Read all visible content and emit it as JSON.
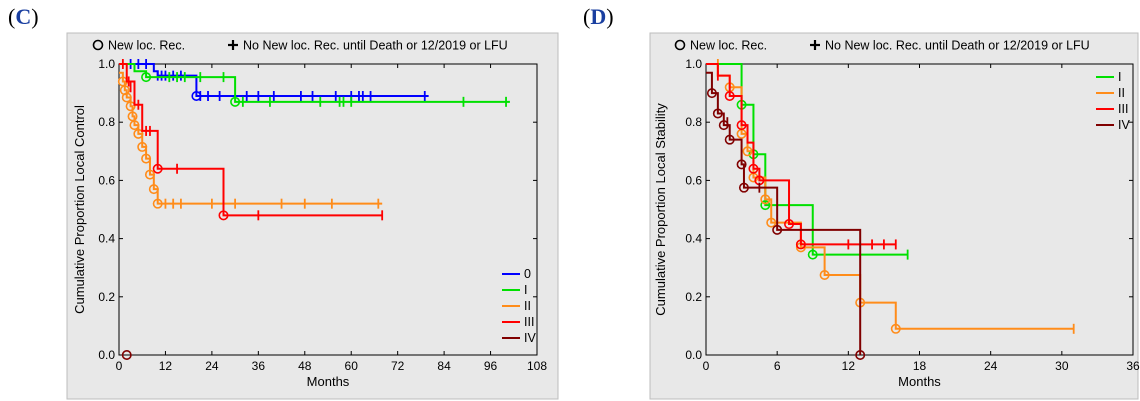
{
  "panels": [
    {
      "label_open": "(",
      "label_letter": "C",
      "label_close": ")",
      "top_legend": {
        "event": "New loc. Rec.",
        "censor": "No New loc. Rec. until Death or 12/2019 or LFU"
      },
      "chart_data": {
        "type": "line",
        "subtype": "kaplan-meier-step",
        "xlabel": "Months",
        "ylabel": "Cumulative Proportion Local Control",
        "xlim": [
          0,
          108
        ],
        "ylim": [
          0,
          1
        ],
        "xticks": [
          0,
          12,
          24,
          36,
          48,
          60,
          72,
          84,
          96,
          108
        ],
        "yticks": [
          "0.0",
          "0.2",
          "0.4",
          "0.6",
          "0.8",
          "1.0"
        ],
        "legend_position": "bottom-right",
        "series": [
          {
            "name": "0",
            "color": "#0000ff",
            "steps": [
              [
                0,
                1.0
              ],
              [
                9,
                0.975
              ],
              [
                10,
                0.96
              ],
              [
                20,
                0.89
              ],
              [
                80,
                0.89
              ]
            ],
            "events": [
              [
                20,
                0.89
              ]
            ],
            "censors": [
              [
                3,
                1.0
              ],
              [
                5,
                1.0
              ],
              [
                7,
                1.0
              ],
              [
                10,
                0.96
              ],
              [
                11,
                0.96
              ],
              [
                12,
                0.96
              ],
              [
                14,
                0.96
              ],
              [
                16,
                0.96
              ],
              [
                21,
                0.89
              ],
              [
                23,
                0.89
              ],
              [
                26,
                0.89
              ],
              [
                33,
                0.89
              ],
              [
                36,
                0.89
              ],
              [
                40,
                0.89
              ],
              [
                47,
                0.89
              ],
              [
                50,
                0.89
              ],
              [
                56,
                0.89
              ],
              [
                60,
                0.89
              ],
              [
                62,
                0.89
              ],
              [
                63,
                0.89
              ],
              [
                65,
                0.89
              ],
              [
                79,
                0.89
              ]
            ]
          },
          {
            "name": "I",
            "color": "#00e000",
            "steps": [
              [
                0,
                1.0
              ],
              [
                4,
                0.975
              ],
              [
                7,
                0.955
              ],
              [
                30,
                0.87
              ],
              [
                101,
                0.87
              ]
            ],
            "events": [
              [
                7,
                0.955
              ],
              [
                30,
                0.87
              ]
            ],
            "censors": [
              [
                13,
                0.955
              ],
              [
                15,
                0.955
              ],
              [
                17,
                0.955
              ],
              [
                21,
                0.955
              ],
              [
                27,
                0.955
              ],
              [
                32,
                0.87
              ],
              [
                39,
                0.87
              ],
              [
                52,
                0.87
              ],
              [
                57,
                0.87
              ],
              [
                58,
                0.87
              ],
              [
                60,
                0.87
              ],
              [
                89,
                0.87
              ],
              [
                100,
                0.87
              ]
            ]
          },
          {
            "name": "II",
            "color": "#ff8c1a",
            "steps": [
              [
                0,
                0.97
              ],
              [
                1,
                0.94
              ],
              [
                1.5,
                0.91
              ],
              [
                2,
                0.885
              ],
              [
                3,
                0.855
              ],
              [
                3.5,
                0.82
              ],
              [
                4,
                0.79
              ],
              [
                5,
                0.76
              ],
              [
                6,
                0.715
              ],
              [
                7,
                0.675
              ],
              [
                8,
                0.62
              ],
              [
                9,
                0.57
              ],
              [
                10,
                0.52
              ],
              [
                68,
                0.52
              ]
            ],
            "events": [
              [
                1,
                0.94
              ],
              [
                1.5,
                0.91
              ],
              [
                2,
                0.885
              ],
              [
                3,
                0.855
              ],
              [
                3.5,
                0.82
              ],
              [
                4,
                0.79
              ],
              [
                5,
                0.76
              ],
              [
                6,
                0.715
              ],
              [
                7,
                0.675
              ],
              [
                8,
                0.62
              ],
              [
                9,
                0.57
              ],
              [
                10,
                0.52
              ]
            ],
            "censors": [
              [
                12,
                0.52
              ],
              [
                14,
                0.52
              ],
              [
                16,
                0.52
              ],
              [
                24,
                0.52
              ],
              [
                30,
                0.52
              ],
              [
                42,
                0.52
              ],
              [
                48,
                0.52
              ],
              [
                55,
                0.52
              ],
              [
                67,
                0.52
              ]
            ]
          },
          {
            "name": "III",
            "color": "#ff0000",
            "steps": [
              [
                0,
                1.0
              ],
              [
                2,
                0.94
              ],
              [
                4,
                0.86
              ],
              [
                6,
                0.77
              ],
              [
                10,
                0.64
              ],
              [
                27,
                0.48
              ],
              [
                68,
                0.48
              ]
            ],
            "events": [
              [
                10,
                0.64
              ],
              [
                27,
                0.48
              ]
            ],
            "censors": [
              [
                1,
                1.0
              ],
              [
                2.5,
                0.94
              ],
              [
                3,
                0.92
              ],
              [
                5,
                0.86
              ],
              [
                7,
                0.77
              ],
              [
                8,
                0.77
              ],
              [
                15,
                0.64
              ],
              [
                36,
                0.48
              ],
              [
                68,
                0.48
              ]
            ]
          },
          {
            "name": "IV",
            "color": "#800000",
            "steps": [],
            "events": [
              [
                2,
                0.0
              ]
            ],
            "censors": []
          }
        ]
      }
    },
    {
      "label_open": "(",
      "label_letter": "D",
      "label_close": ")",
      "top_legend": {
        "event": "New loc. Rec.",
        "censor": "No New loc. Rec. until Death or 12/2019 or LFU"
      },
      "chart_data": {
        "type": "line",
        "subtype": "kaplan-meier-step",
        "xlabel": "Months",
        "ylabel": "Cumulative Proportion Local Stability",
        "xlim": [
          0,
          36
        ],
        "ylim": [
          0,
          1
        ],
        "xticks": [
          0,
          6,
          12,
          18,
          24,
          30,
          36
        ],
        "yticks": [
          "0.0",
          "0.2",
          "0.4",
          "0.6",
          "0.8",
          "1.0"
        ],
        "legend_position": "top-right",
        "series": [
          {
            "name": "I",
            "color": "#00e000",
            "steps": [
              [
                0,
                1.0
              ],
              [
                3,
                0.86
              ],
              [
                4,
                0.69
              ],
              [
                5,
                0.515
              ],
              [
                9,
                0.345
              ],
              [
                17,
                0.345
              ]
            ],
            "events": [
              [
                3,
                0.86
              ],
              [
                4,
                0.69
              ],
              [
                5,
                0.515
              ],
              [
                9,
                0.345
              ]
            ],
            "censors": [
              [
                17,
                0.345
              ]
            ]
          },
          {
            "name": "II",
            "color": "#ff8c1a",
            "steps": [
              [
                0,
                1.0
              ],
              [
                1,
                0.96
              ],
              [
                2,
                0.92
              ],
              [
                3,
                0.76
              ],
              [
                3.5,
                0.7
              ],
              [
                4,
                0.61
              ],
              [
                5,
                0.535
              ],
              [
                5.5,
                0.455
              ],
              [
                8,
                0.37
              ],
              [
                10,
                0.275
              ],
              [
                13,
                0.18
              ],
              [
                16,
                0.09
              ],
              [
                31,
                0.09
              ]
            ],
            "events": [
              [
                2,
                0.92
              ],
              [
                3,
                0.76
              ],
              [
                3.5,
                0.7
              ],
              [
                4,
                0.61
              ],
              [
                5,
                0.535
              ],
              [
                5.5,
                0.455
              ],
              [
                8,
                0.37
              ],
              [
                10,
                0.275
              ],
              [
                13,
                0.18
              ],
              [
                16,
                0.09
              ]
            ],
            "censors": [
              [
                1,
                1.0
              ],
              [
                31,
                0.09
              ]
            ]
          },
          {
            "name": "III",
            "color": "#ff0000",
            "steps": [
              [
                0,
                1.0
              ],
              [
                1,
                0.96
              ],
              [
                2,
                0.89
              ],
              [
                3,
                0.79
              ],
              [
                3.5,
                0.73
              ],
              [
                4,
                0.64
              ],
              [
                4.5,
                0.6
              ],
              [
                7,
                0.45
              ],
              [
                8,
                0.38
              ],
              [
                16,
                0.38
              ]
            ],
            "events": [
              [
                2,
                0.89
              ],
              [
                3,
                0.79
              ],
              [
                4,
                0.64
              ],
              [
                4.5,
                0.6
              ],
              [
                7,
                0.45
              ],
              [
                8,
                0.38
              ]
            ],
            "censors": [
              [
                1,
                0.96
              ],
              [
                12,
                0.38
              ],
              [
                14,
                0.38
              ],
              [
                15,
                0.38
              ],
              [
                16,
                0.38
              ]
            ]
          },
          {
            "name": "IV",
            "color": "#800000",
            "steps": [
              [
                0,
                0.97
              ],
              [
                0.5,
                0.9
              ],
              [
                1,
                0.83
              ],
              [
                1.5,
                0.79
              ],
              [
                2,
                0.74
              ],
              [
                3,
                0.655
              ],
              [
                3.2,
                0.575
              ],
              [
                6,
                0.43
              ],
              [
                13,
                0.0
              ]
            ],
            "events": [
              [
                0.5,
                0.9
              ],
              [
                1,
                0.83
              ],
              [
                1.5,
                0.79
              ],
              [
                2,
                0.74
              ],
              [
                3,
                0.655
              ],
              [
                3.2,
                0.575
              ],
              [
                6,
                0.43
              ],
              [
                13,
                0.0
              ]
            ],
            "censors": [
              [
                1.8,
                0.8
              ],
              [
                4.5,
                0.575
              ]
            ]
          }
        ]
      }
    }
  ]
}
